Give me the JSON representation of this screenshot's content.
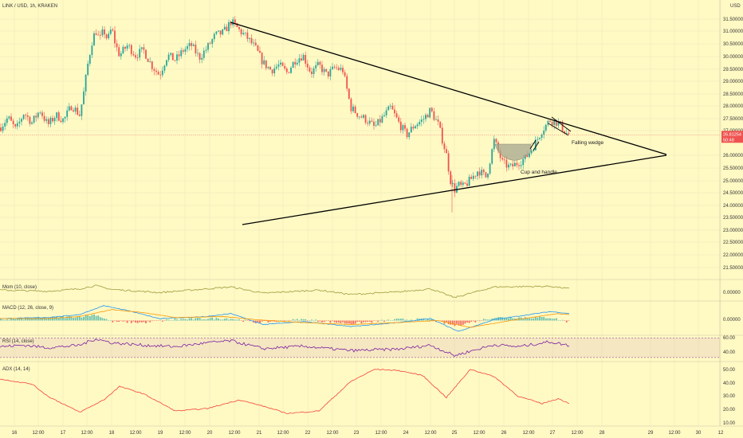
{
  "header": {
    "symbol_title": "LINK / USD, 1h, KRAKEN",
    "currency": "USD"
  },
  "colors": {
    "background": "#fff9c4",
    "up": "#26a69a",
    "down": "#ef5350",
    "line": "#9e9a3b",
    "macd": "#2196f3",
    "signal": "#ff9800",
    "rsi": "#7b1fa2",
    "adx": "#f44336",
    "trend": "#000000"
  },
  "chart_data": [
    {
      "type": "candlestick",
      "title": "LINK / USD, 1h, KRAKEN",
      "ylabel": "USD",
      "x_ticks": [
        "16",
        "12:00",
        "17",
        "12:00",
        "18",
        "12:00",
        "19",
        "12:00",
        "20",
        "12:00",
        "21",
        "12:00",
        "22",
        "12:00",
        "23",
        "12:00",
        "24",
        "12:00",
        "25",
        "12:00",
        "26",
        "12:00",
        "27",
        "12:00",
        "28",
        "29",
        "12:00",
        "30",
        "12"
      ],
      "y_ticks": [
        "31.50000",
        "31.00000",
        "30.50000",
        "30.00000",
        "29.50000",
        "29.00000",
        "28.50000",
        "28.00000",
        "27.50000",
        "27.00000",
        "26.00000",
        "25.50000",
        "25.00000",
        "24.50000",
        "24.00000",
        "23.50000",
        "23.00000",
        "22.50000",
        "22.00000",
        "21.50000"
      ],
      "ylim": [
        21.3,
        31.7
      ],
      "last_price": "26.81254",
      "countdown": "50:48",
      "path": [
        [
          0,
          27.1
        ],
        [
          10,
          27.5
        ],
        [
          20,
          27.0
        ],
        [
          30,
          27.7
        ],
        [
          40,
          27.3
        ],
        [
          50,
          27.8
        ],
        [
          60,
          27.2
        ],
        [
          70,
          27.6
        ],
        [
          80,
          27.4
        ],
        [
          90,
          28.0
        ],
        [
          100,
          27.6
        ],
        [
          105,
          28.5
        ],
        [
          110,
          29.6
        ],
        [
          115,
          30.5
        ],
        [
          120,
          31.0
        ],
        [
          125,
          30.6
        ],
        [
          130,
          31.0
        ],
        [
          135,
          30.6
        ],
        [
          140,
          31.1
        ],
        [
          145,
          30.4
        ],
        [
          150,
          30.0
        ],
        [
          160,
          30.4
        ],
        [
          170,
          30.0
        ],
        [
          180,
          30.2
        ],
        [
          190,
          29.6
        ],
        [
          200,
          29.2
        ],
        [
          210,
          30.0
        ],
        [
          220,
          29.8
        ],
        [
          230,
          30.2
        ],
        [
          240,
          30.4
        ],
        [
          250,
          29.9
        ],
        [
          260,
          30.3
        ],
        [
          270,
          30.8
        ],
        [
          280,
          30.9
        ],
        [
          290,
          31.35
        ],
        [
          300,
          31.0
        ],
        [
          310,
          30.7
        ],
        [
          320,
          30.3
        ],
        [
          330,
          29.7
        ],
        [
          340,
          29.4
        ],
        [
          350,
          29.6
        ],
        [
          360,
          29.3
        ],
        [
          370,
          29.8
        ],
        [
          380,
          30.0
        ],
        [
          390,
          29.3
        ],
        [
          400,
          29.6
        ],
        [
          410,
          29.2
        ],
        [
          420,
          29.5
        ],
        [
          430,
          29.4
        ],
        [
          440,
          27.9
        ],
        [
          450,
          27.6
        ],
        [
          460,
          27.4
        ],
        [
          470,
          27.1
        ],
        [
          480,
          27.5
        ],
        [
          490,
          27.9
        ],
        [
          500,
          27.3
        ],
        [
          510,
          26.8
        ],
        [
          520,
          27.2
        ],
        [
          530,
          27.4
        ],
        [
          540,
          27.8
        ],
        [
          550,
          27.2
        ],
        [
          560,
          26.0
        ],
        [
          565,
          25.0
        ],
        [
          570,
          24.6
        ],
        [
          575,
          24.8
        ],
        [
          580,
          24.7
        ],
        [
          590,
          25.0
        ],
        [
          600,
          25.4
        ],
        [
          610,
          25.1
        ],
        [
          620,
          26.6
        ],
        [
          630,
          25.7
        ],
        [
          640,
          25.5
        ],
        [
          650,
          25.7
        ],
        [
          660,
          25.9
        ],
        [
          670,
          26.4
        ],
        [
          680,
          27.0
        ],
        [
          690,
          27.4
        ],
        [
          700,
          27.3
        ],
        [
          710,
          26.9
        ],
        [
          715,
          26.8
        ]
      ]
    },
    {
      "type": "line",
      "title": "Mom (10, close)",
      "y_ticks": [
        "0.00000"
      ],
      "ylim": [
        -1.4,
        1.4
      ],
      "path": [
        [
          0,
          0.1
        ],
        [
          60,
          -0.1
        ],
        [
          100,
          0.3
        ],
        [
          120,
          0.8
        ],
        [
          140,
          0.2
        ],
        [
          200,
          -0.3
        ],
        [
          260,
          0.3
        ],
        [
          290,
          0.6
        ],
        [
          330,
          -0.4
        ],
        [
          400,
          0.1
        ],
        [
          440,
          -0.6
        ],
        [
          500,
          -0.2
        ],
        [
          540,
          0.3
        ],
        [
          570,
          -1.1
        ],
        [
          620,
          0.6
        ],
        [
          690,
          0.7
        ],
        [
          715,
          0.3
        ]
      ]
    },
    {
      "type": "bar+line",
      "title": "MACD (12, 26, close, 9)",
      "y_ticks": [
        "0.00000"
      ],
      "ylim": [
        -0.7,
        0.9
      ],
      "hist": [
        [
          0,
          0.05
        ],
        [
          60,
          0.15
        ],
        [
          100,
          0.2
        ],
        [
          120,
          0.3
        ],
        [
          140,
          -0.05
        ],
        [
          180,
          -0.1
        ],
        [
          220,
          0.05
        ],
        [
          260,
          0.1
        ],
        [
          290,
          0.1
        ],
        [
          320,
          -0.1
        ],
        [
          380,
          0.05
        ],
        [
          440,
          -0.15
        ],
        [
          500,
          0.05
        ],
        [
          540,
          0.05
        ],
        [
          570,
          -0.25
        ],
        [
          620,
          0.15
        ],
        [
          690,
          0.15
        ],
        [
          715,
          -0.08
        ]
      ],
      "macd": [
        [
          0,
          0.1
        ],
        [
          60,
          0.15
        ],
        [
          100,
          0.3
        ],
        [
          130,
          0.75
        ],
        [
          160,
          0.5
        ],
        [
          200,
          0.1
        ],
        [
          260,
          0.2
        ],
        [
          290,
          0.35
        ],
        [
          330,
          -0.2
        ],
        [
          380,
          -0.05
        ],
        [
          440,
          -0.3
        ],
        [
          500,
          -0.1
        ],
        [
          540,
          0.1
        ],
        [
          575,
          -0.55
        ],
        [
          620,
          0.05
        ],
        [
          690,
          0.45
        ],
        [
          715,
          0.35
        ]
      ],
      "signal": [
        [
          0,
          0.1
        ],
        [
          60,
          0.1
        ],
        [
          100,
          0.2
        ],
        [
          140,
          0.55
        ],
        [
          180,
          0.4
        ],
        [
          220,
          0.15
        ],
        [
          280,
          0.2
        ],
        [
          320,
          0.05
        ],
        [
          380,
          -0.1
        ],
        [
          440,
          -0.2
        ],
        [
          500,
          -0.1
        ],
        [
          550,
          0.0
        ],
        [
          590,
          -0.35
        ],
        [
          640,
          0.0
        ],
        [
          700,
          0.35
        ],
        [
          715,
          0.3
        ]
      ]
    },
    {
      "type": "line",
      "title": "RSI (14, close)",
      "y_ticks": [
        "60.00",
        "40.00"
      ],
      "ylim": [
        25,
        72
      ],
      "band": [
        30,
        70
      ],
      "path": [
        [
          0,
          52
        ],
        [
          30,
          55
        ],
        [
          60,
          50
        ],
        [
          100,
          55
        ],
        [
          120,
          68
        ],
        [
          140,
          60
        ],
        [
          180,
          55
        ],
        [
          220,
          52
        ],
        [
          260,
          60
        ],
        [
          290,
          64
        ],
        [
          330,
          48
        ],
        [
          380,
          53
        ],
        [
          440,
          44
        ],
        [
          500,
          47
        ],
        [
          540,
          55
        ],
        [
          570,
          34
        ],
        [
          620,
          56
        ],
        [
          650,
          52
        ],
        [
          690,
          62
        ],
        [
          715,
          54
        ]
      ]
    },
    {
      "type": "line",
      "title": "ADX (14, 14)",
      "y_ticks": [
        "50.00",
        "40.00",
        "30.00",
        "20.00",
        "10.00"
      ],
      "ylim": [
        5,
        55
      ],
      "path": [
        [
          0,
          42
        ],
        [
          40,
          38
        ],
        [
          60,
          28
        ],
        [
          100,
          15
        ],
        [
          130,
          25
        ],
        [
          150,
          36
        ],
        [
          180,
          30
        ],
        [
          220,
          16
        ],
        [
          260,
          18
        ],
        [
          300,
          25
        ],
        [
          330,
          20
        ],
        [
          360,
          14
        ],
        [
          400,
          16
        ],
        [
          440,
          40
        ],
        [
          470,
          50
        ],
        [
          500,
          49
        ],
        [
          530,
          45
        ],
        [
          560,
          27
        ],
        [
          590,
          50
        ],
        [
          620,
          44
        ],
        [
          650,
          28
        ],
        [
          680,
          22
        ],
        [
          700,
          26
        ],
        [
          715,
          22
        ]
      ]
    }
  ],
  "annotations": {
    "falling_wedge": "Falling wedge",
    "cup_handle": "Cup and handle"
  }
}
